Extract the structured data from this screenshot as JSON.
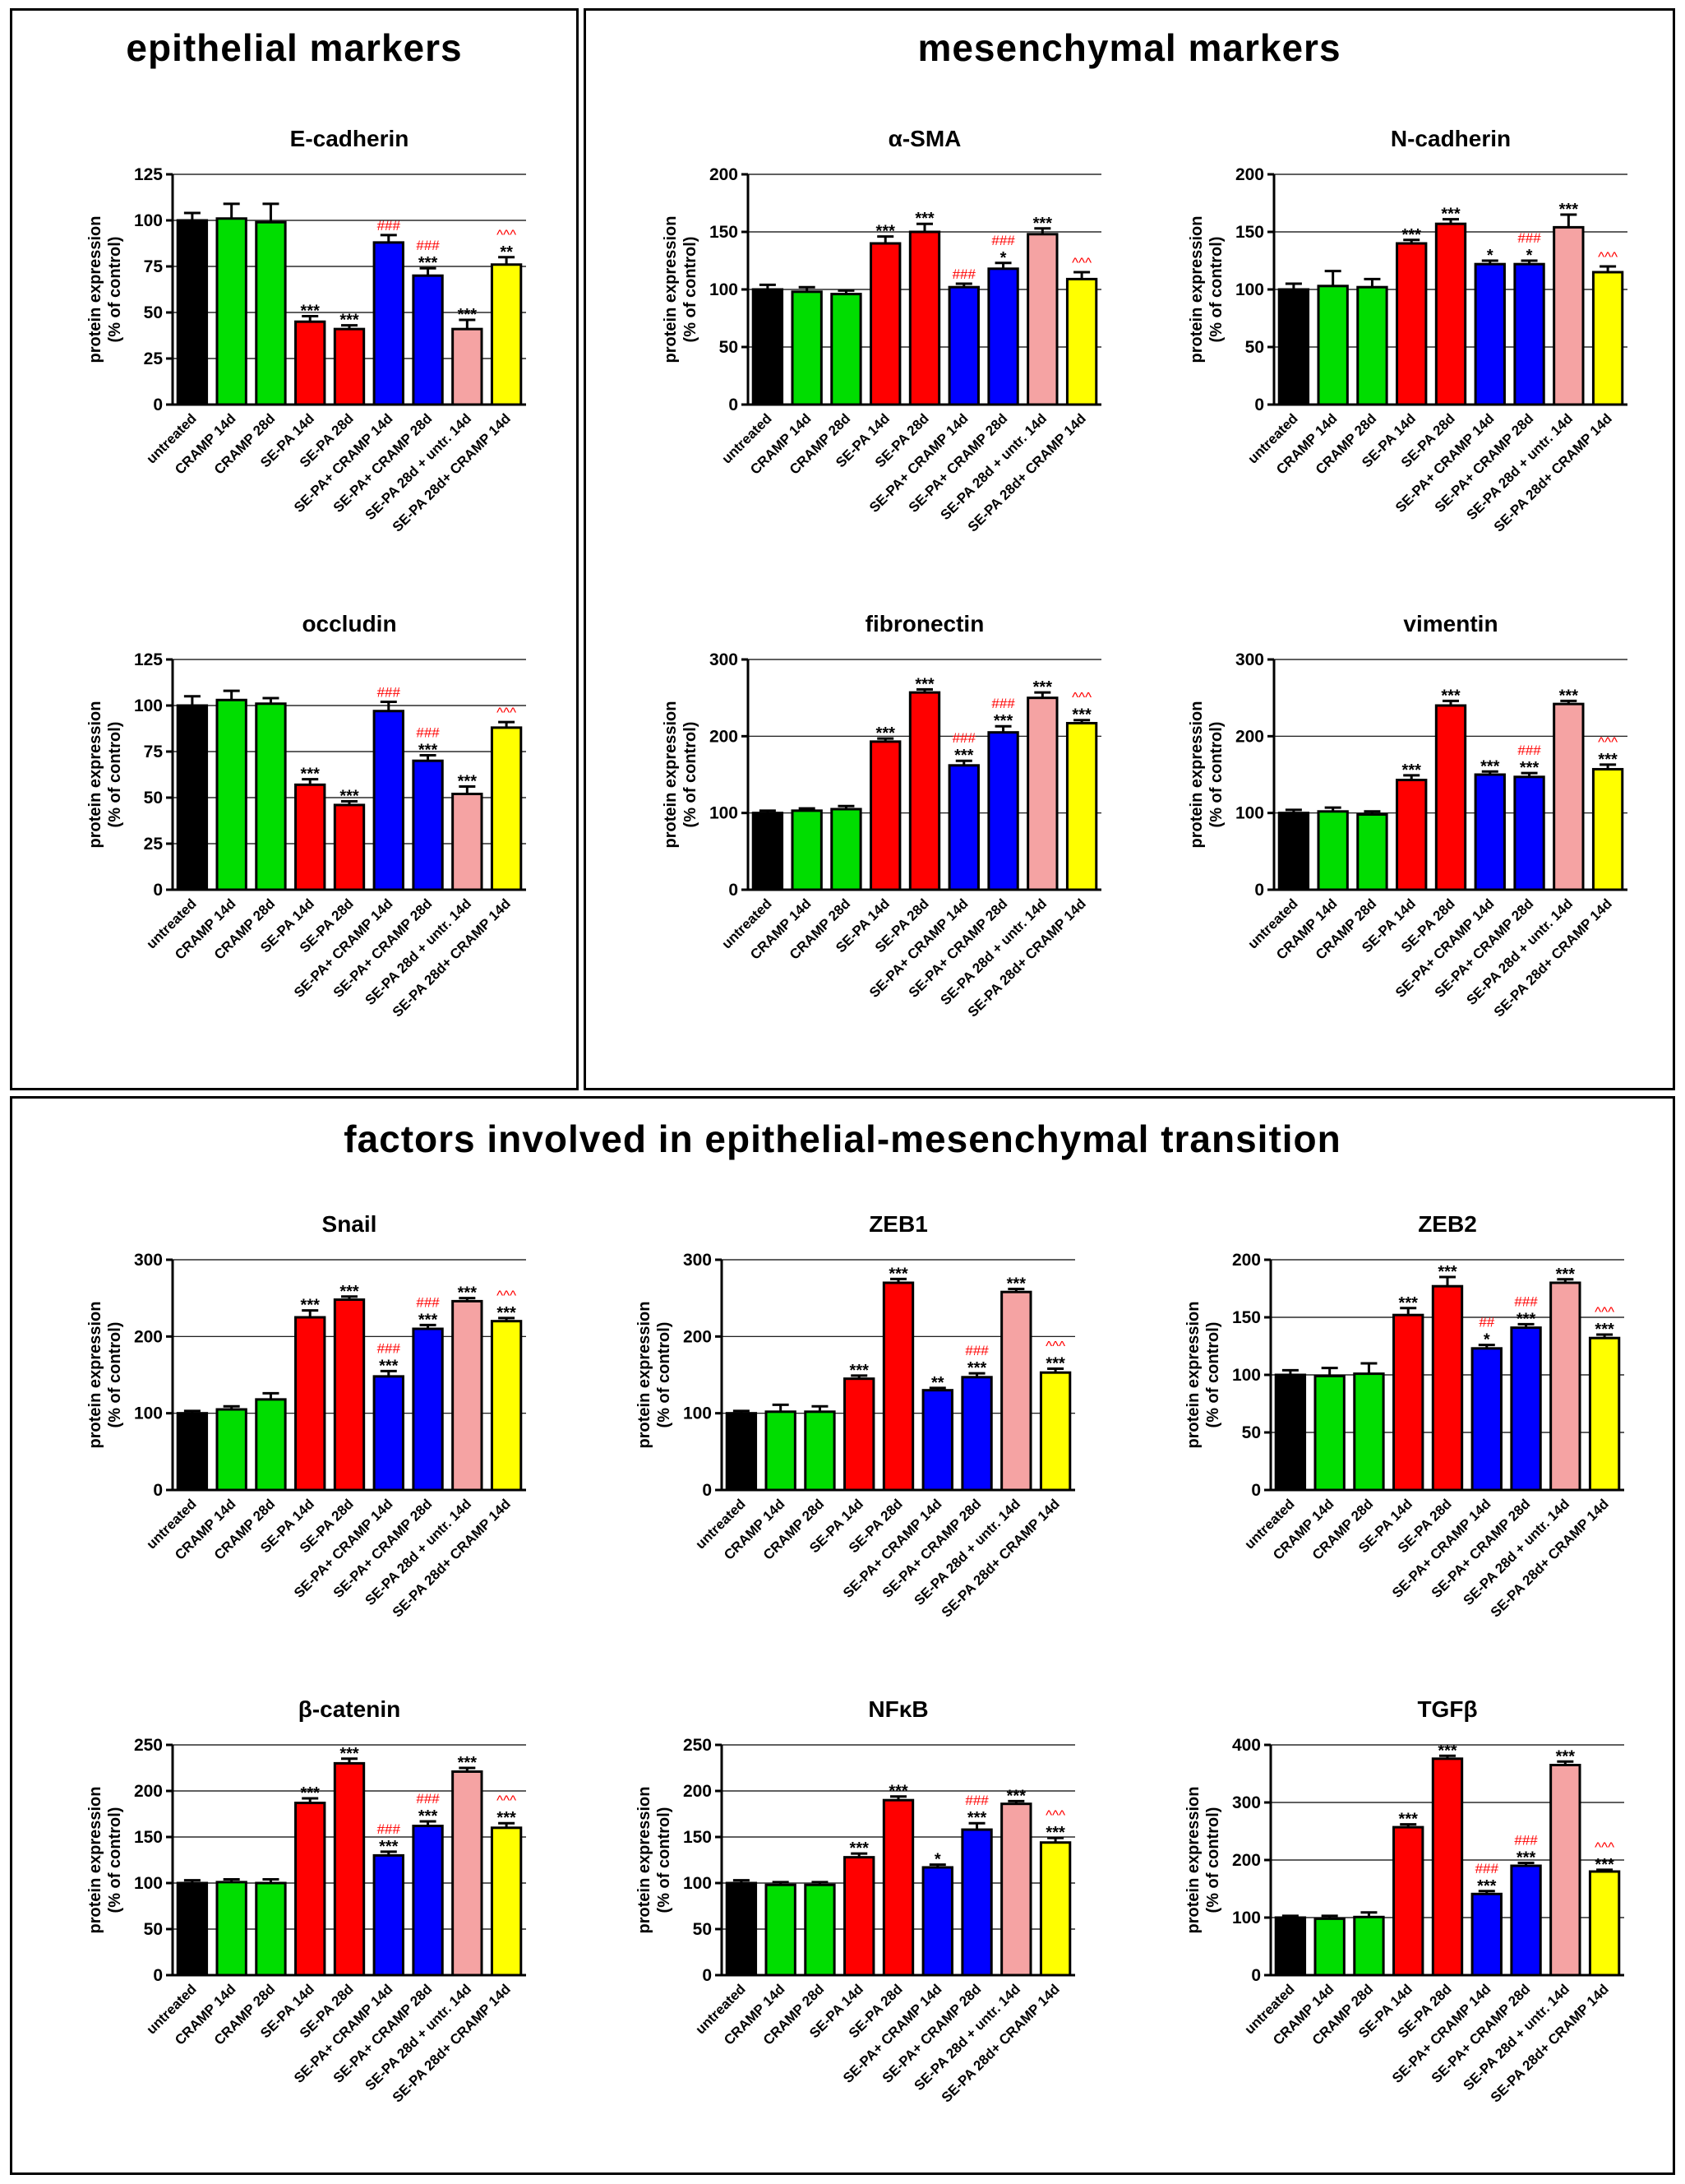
{
  "sections": [
    {
      "id": "epithelial",
      "title": "epithelial markers"
    },
    {
      "id": "mesenchymal",
      "title": "mesenchymal markers"
    },
    {
      "id": "emt",
      "title": "factors involved in epithelial-mesenchymal transition"
    }
  ],
  "y_axis_label_line1": "protein expression",
  "y_axis_label_line2": "(% of control)",
  "colors": {
    "untreated": "#000000",
    "cramp": "#00dd00",
    "sepa": "#ff0000",
    "sepa_cramp": "#0000ff",
    "sepa_untr": "#f5a3a3",
    "sepa_late_cramp": "#ffff00",
    "sig_black": "#000000",
    "sig_red": "#ff0000"
  },
  "chart_data": [
    {
      "type": "bar",
      "section": "epithelial",
      "title": "E-cadherin",
      "ylim": [
        0,
        125
      ],
      "yticks": [
        0,
        25,
        50,
        75,
        100,
        125
      ],
      "categories": [
        "untreated",
        "CRAMP 14d",
        "CRAMP 28d",
        "SE-PA 14d",
        "SE-PA 28d",
        "SE-PA+ CRAMP 14d",
        "SE-PA+ CRAMP 28d",
        "SE-PA 28d  + untr. 14d",
        "SE-PA 28d+ CRAMP 14d"
      ],
      "values": [
        100,
        101,
        99,
        45,
        41,
        88,
        70,
        41,
        76
      ],
      "errors": [
        4,
        8,
        10,
        3,
        2,
        4,
        4,
        5,
        4
      ],
      "sig": [
        "",
        "",
        "",
        "***",
        "***",
        "",
        "***",
        "***",
        "**"
      ],
      "sig2": [
        "",
        "",
        "",
        "",
        "",
        "###",
        "###",
        "",
        "^^^"
      ]
    },
    {
      "type": "bar",
      "section": "epithelial",
      "title": "occludin",
      "ylim": [
        0,
        125
      ],
      "yticks": [
        0,
        25,
        50,
        75,
        100,
        125
      ],
      "categories": [
        "untreated",
        "CRAMP 14d",
        "CRAMP 28d",
        "SE-PA 14d",
        "SE-PA 28d",
        "SE-PA+ CRAMP 14d",
        "SE-PA+ CRAMP 28d",
        "SE-PA 28d  + untr. 14d",
        "SE-PA 28d+ CRAMP 14d"
      ],
      "values": [
        100,
        103,
        101,
        57,
        46,
        97,
        70,
        52,
        88
      ],
      "errors": [
        5,
        5,
        3,
        3,
        2,
        5,
        3,
        4,
        3
      ],
      "sig": [
        "",
        "",
        "",
        "***",
        "***",
        "",
        "***",
        "***",
        ""
      ],
      "sig2": [
        "",
        "",
        "",
        "",
        "",
        "###",
        "###",
        "",
        "^^^"
      ]
    },
    {
      "type": "bar",
      "section": "mesenchymal",
      "title": "α-SMA",
      "ylim": [
        0,
        200
      ],
      "yticks": [
        0,
        50,
        100,
        150,
        200
      ],
      "categories": [
        "untreated",
        "CRAMP 14d",
        "CRAMP 28d",
        "SE-PA 14d",
        "SE-PA 28d",
        "SE-PA+ CRAMP 14d",
        "SE-PA+ CRAMP 28d",
        "SE-PA 28d  + untr. 14d",
        "SE-PA 28d+ CRAMP 14d"
      ],
      "values": [
        100,
        98,
        96,
        140,
        150,
        102,
        118,
        148,
        109
      ],
      "errors": [
        4,
        4,
        3,
        6,
        7,
        3,
        5,
        5,
        6
      ],
      "sig": [
        "",
        "",
        "",
        "***",
        "***",
        "",
        "*",
        "***",
        ""
      ],
      "sig2": [
        "",
        "",
        "",
        "",
        "",
        "###",
        "###",
        "",
        "^^^"
      ]
    },
    {
      "type": "bar",
      "section": "mesenchymal",
      "title": "N-cadherin",
      "ylim": [
        0,
        200
      ],
      "yticks": [
        0,
        50,
        100,
        150,
        200
      ],
      "categories": [
        "untreated",
        "CRAMP 14d",
        "CRAMP 28d",
        "SE-PA 14d",
        "SE-PA 28d",
        "SE-PA+ CRAMP 14d",
        "SE-PA+ CRAMP 28d",
        "SE-PA 28d  + untr. 14d",
        "SE-PA 28d+ CRAMP 14d"
      ],
      "values": [
        100,
        103,
        102,
        140,
        157,
        122,
        122,
        154,
        115
      ],
      "errors": [
        5,
        13,
        7,
        3,
        4,
        3,
        3,
        11,
        5
      ],
      "sig": [
        "",
        "",
        "",
        "***",
        "***",
        "*",
        "*",
        "***",
        ""
      ],
      "sig2": [
        "",
        "",
        "",
        "",
        "",
        "",
        "###",
        "",
        "^^^"
      ]
    },
    {
      "type": "bar",
      "section": "mesenchymal",
      "title": "fibronectin",
      "ylim": [
        0,
        300
      ],
      "yticks": [
        0,
        100,
        200,
        300
      ],
      "categories": [
        "untreated",
        "CRAMP 14d",
        "CRAMP 28d",
        "SE-PA 14d",
        "SE-PA 28d",
        "SE-PA+ CRAMP 14d",
        "SE-PA+ CRAMP 28d",
        "SE-PA 28d  + untr. 14d",
        "SE-PA 28d+ CRAMP 14d"
      ],
      "values": [
        100,
        103,
        105,
        193,
        257,
        162,
        205,
        250,
        217
      ],
      "errors": [
        3,
        3,
        4,
        4,
        4,
        6,
        8,
        7,
        4
      ],
      "sig": [
        "",
        "",
        "",
        "***",
        "***",
        "***",
        "***",
        "***",
        "***"
      ],
      "sig2": [
        "",
        "",
        "",
        "",
        "",
        "###",
        "###",
        "",
        "^^^"
      ]
    },
    {
      "type": "bar",
      "section": "mesenchymal",
      "title": "vimentin",
      "ylim": [
        0,
        300
      ],
      "yticks": [
        0,
        100,
        200,
        300
      ],
      "categories": [
        "untreated",
        "CRAMP 14d",
        "CRAMP 28d",
        "SE-PA 14d",
        "SE-PA 28d",
        "SE-PA+ CRAMP 14d",
        "SE-PA+ CRAMP 28d",
        "SE-PA 28d  + untr. 14d",
        "SE-PA 28d+ CRAMP 14d"
      ],
      "values": [
        100,
        102,
        98,
        143,
        240,
        150,
        147,
        242,
        157
      ],
      "errors": [
        4,
        5,
        4,
        6,
        6,
        4,
        5,
        4,
        6
      ],
      "sig": [
        "",
        "",
        "",
        "***",
        "***",
        "***",
        "***",
        "***",
        "***"
      ],
      "sig2": [
        "",
        "",
        "",
        "",
        "",
        "",
        "###",
        "",
        "^^^"
      ]
    },
    {
      "type": "bar",
      "section": "emt",
      "title": "Snail",
      "ylim": [
        0,
        300
      ],
      "yticks": [
        0,
        100,
        200,
        300
      ],
      "categories": [
        "untreated",
        "CRAMP 14d",
        "CRAMP 28d",
        "SE-PA 14d",
        "SE-PA 28d",
        "SE-PA+ CRAMP 14d",
        "SE-PA+ CRAMP 28d",
        "SE-PA 28d  + untr. 14d",
        "SE-PA 28d+ CRAMP 14d"
      ],
      "values": [
        100,
        105,
        118,
        225,
        248,
        148,
        210,
        246,
        220
      ],
      "errors": [
        3,
        4,
        8,
        9,
        4,
        7,
        5,
        4,
        4
      ],
      "sig": [
        "",
        "",
        "",
        "***",
        "***",
        "***",
        "***",
        "***",
        "***"
      ],
      "sig2": [
        "",
        "",
        "",
        "",
        "",
        "###",
        "###",
        "",
        "^^^"
      ]
    },
    {
      "type": "bar",
      "section": "emt",
      "title": "ZEB1",
      "ylim": [
        0,
        300
      ],
      "yticks": [
        0,
        100,
        200,
        300
      ],
      "categories": [
        "untreated",
        "CRAMP 14d",
        "CRAMP 28d",
        "SE-PA 14d",
        "SE-PA 28d",
        "SE-PA+ CRAMP 14d",
        "SE-PA+ CRAMP 28d",
        "SE-PA 28d  + untr. 14d",
        "SE-PA 28d+ CRAMP 14d"
      ],
      "values": [
        100,
        102,
        102,
        145,
        270,
        130,
        147,
        258,
        153
      ],
      "errors": [
        3,
        9,
        7,
        4,
        5,
        3,
        5,
        4,
        5
      ],
      "sig": [
        "",
        "",
        "",
        "***",
        "***",
        "**",
        "***",
        "***",
        "***"
      ],
      "sig2": [
        "",
        "",
        "",
        "",
        "",
        "",
        "###",
        "",
        "^^^"
      ]
    },
    {
      "type": "bar",
      "section": "emt",
      "title": "ZEB2",
      "ylim": [
        0,
        200
      ],
      "yticks": [
        0,
        50,
        100,
        150,
        200
      ],
      "categories": [
        "untreated",
        "CRAMP 14d",
        "CRAMP 28d",
        "SE-PA 14d",
        "SE-PA 28d",
        "SE-PA+ CRAMP 14d",
        "SE-PA+ CRAMP 28d",
        "SE-PA 28d  + untr. 14d",
        "SE-PA 28d+ CRAMP 14d"
      ],
      "values": [
        100,
        99,
        101,
        152,
        177,
        123,
        141,
        180,
        132
      ],
      "errors": [
        4,
        7,
        9,
        6,
        8,
        3,
        3,
        3,
        3
      ],
      "sig": [
        "",
        "",
        "",
        "***",
        "***",
        "*",
        "***",
        "***",
        "***"
      ],
      "sig2": [
        "",
        "",
        "",
        "",
        "",
        "##",
        "###",
        "",
        "^^^"
      ]
    },
    {
      "type": "bar",
      "section": "emt",
      "title": "β-catenin",
      "ylim": [
        0,
        250
      ],
      "yticks": [
        0,
        50,
        100,
        150,
        200,
        250
      ],
      "categories": [
        "untreated",
        "CRAMP 14d",
        "CRAMP 28d",
        "SE-PA 14d",
        "SE-PA 28d",
        "SE-PA+ CRAMP 14d",
        "SE-PA+ CRAMP 28d",
        "SE-PA 28d  + untr. 14d",
        "SE-PA 28d+ CRAMP 14d"
      ],
      "values": [
        100,
        101,
        100,
        187,
        230,
        130,
        162,
        221,
        160
      ],
      "errors": [
        3,
        3,
        4,
        5,
        5,
        4,
        5,
        4,
        5
      ],
      "sig": [
        "",
        "",
        "",
        "***",
        "***",
        "***",
        "***",
        "***",
        "***"
      ],
      "sig2": [
        "",
        "",
        "",
        "",
        "",
        "###",
        "###",
        "",
        "^^^"
      ]
    },
    {
      "type": "bar",
      "section": "emt",
      "title": "NFκB",
      "ylim": [
        0,
        250
      ],
      "yticks": [
        0,
        50,
        100,
        150,
        200,
        250
      ],
      "categories": [
        "untreated",
        "CRAMP 14d",
        "CRAMP 28d",
        "SE-PA 14d",
        "SE-PA 28d",
        "SE-PA+ CRAMP 14d",
        "SE-PA+ CRAMP 28d",
        "SE-PA 28d  + untr. 14d",
        "SE-PA 28d+ CRAMP 14d"
      ],
      "values": [
        100,
        98,
        98,
        128,
        190,
        117,
        158,
        186,
        144
      ],
      "errors": [
        3,
        3,
        3,
        4,
        4,
        3,
        7,
        3,
        5
      ],
      "sig": [
        "",
        "",
        "",
        "***",
        "***",
        "*",
        "***",
        "***",
        "***"
      ],
      "sig2": [
        "",
        "",
        "",
        "",
        "",
        "",
        "###",
        "",
        "^^^"
      ]
    },
    {
      "type": "bar",
      "section": "emt",
      "title": "TGFβ",
      "ylim": [
        0,
        400
      ],
      "yticks": [
        0,
        100,
        200,
        300,
        400
      ],
      "categories": [
        "untreated",
        "CRAMP 14d",
        "CRAMP 28d",
        "SE-PA 14d",
        "SE-PA 28d",
        "SE-PA+ CRAMP 14d",
        "SE-PA+ CRAMP 28d",
        "SE-PA 28d  + untr. 14d",
        "SE-PA 28d+ CRAMP 14d"
      ],
      "values": [
        100,
        98,
        101,
        257,
        376,
        141,
        190,
        365,
        180
      ],
      "errors": [
        3,
        5,
        8,
        5,
        5,
        5,
        5,
        6,
        3
      ],
      "sig": [
        "",
        "",
        "",
        "***",
        "***",
        "***",
        "***",
        "***",
        "***"
      ],
      "sig2": [
        "",
        "",
        "",
        "",
        "",
        "###",
        "###",
        "",
        "^^^"
      ]
    }
  ]
}
